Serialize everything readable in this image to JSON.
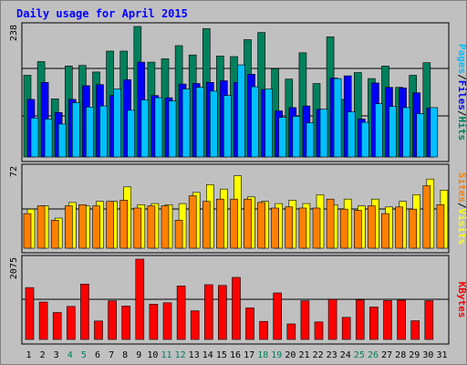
{
  "colors": {
    "background": "#c0c0c0",
    "title": "#0000ff",
    "hits": "#00805c",
    "files": "#0000ff",
    "pages": "#00c0ff",
    "visits": "#ffff00",
    "sites": "#ff8000",
    "kbytes": "#ff0000",
    "weekday_label": "#000000",
    "weekend_label": "#00805c"
  },
  "chart_data": {
    "type": "bar",
    "title": "Daily usage for April 2015",
    "x": {
      "categories": [
        "1",
        "2",
        "3",
        "4",
        "5",
        "6",
        "7",
        "8",
        "9",
        "10",
        "11",
        "12",
        "13",
        "14",
        "15",
        "16",
        "17",
        "18",
        "19",
        "20",
        "21",
        "22",
        "23",
        "24",
        "25",
        "26",
        "27",
        "28",
        "29",
        "30",
        "31"
      ],
      "weekend_days": [
        "4",
        "5",
        "11",
        "12",
        "18",
        "19",
        "25",
        "26"
      ]
    },
    "panels": [
      {
        "name": "hits-files-pages",
        "ymax_label": "238",
        "ylim": [
          0,
          238
        ],
        "axis_title": [
          "Pages",
          "/",
          "Files",
          "/",
          "Hits"
        ],
        "axis_title_colors": [
          "pages",
          "black",
          "files",
          "black",
          "hits"
        ],
        "series": [
          {
            "name": "Hits",
            "color_key": "hits",
            "values": [
              149,
              174,
              106,
              166,
              167,
              155,
              193,
              193,
              238,
              173,
              179,
              203,
              186,
              234,
              184,
              183,
              214,
              227,
              161,
              142,
              190,
              134,
              219,
              105,
              154,
              143,
              166,
              127,
              149,
              172,
              null
            ]
          },
          {
            "name": "Files",
            "color_key": "files",
            "values": [
              105,
              136,
              81,
              105,
              130,
              132,
              112,
              141,
              173,
              112,
              108,
              133,
              134,
              136,
              139,
              136,
              151,
              123,
              84,
              90,
              93,
              87,
              144,
              148,
              69,
              135,
              127,
              126,
              117,
              89,
              null
            ]
          },
          {
            "name": "Pages",
            "color_key": "pages",
            "values": [
              71,
              69,
              60,
              99,
              91,
              93,
              124,
              85,
              104,
              108,
              102,
              124,
              127,
              120,
              112,
              168,
              128,
              124,
              72,
              74,
              62,
              87,
              143,
              82,
              63,
              97,
              92,
              90,
              79,
              90,
              null
            ]
          }
        ]
      },
      {
        "name": "visits-sites",
        "ymax_label": "72",
        "ylim": [
          0,
          72
        ],
        "axis_title": [
          "Sites",
          "/",
          "Visits"
        ],
        "axis_title_colors": [
          "sites",
          "black",
          "visits"
        ],
        "series": [
          {
            "name": "Visits",
            "color_key": "visits",
            "values": [
              35,
              38,
              27,
              41,
              38,
              42,
              42,
              55,
              39,
              40,
              39,
              40,
              50,
              57,
              53,
              65,
              46,
              42,
              40,
              43,
              40,
              48,
              39,
              44,
              38,
              44,
              37,
              42,
              48,
              62,
              52
            ]
          },
          {
            "name": "Sites",
            "color_key": "sites",
            "values": [
              31,
              38,
              25,
              38,
              39,
              38,
              42,
              43,
              36,
              38,
              38,
              25,
              47,
              42,
              44,
              44,
              44,
              41,
              36,
              37,
              36,
              36,
              44,
              35,
              34,
              38,
              31,
              37,
              35,
              56,
              39
            ]
          }
        ]
      },
      {
        "name": "kbytes",
        "ymax_label": "2075",
        "ylim": [
          0,
          2075
        ],
        "axis_title": [
          "KBytes"
        ],
        "axis_title_colors": [
          "kbytes"
        ],
        "series": [
          {
            "name": "KBytes",
            "color_key": "kbytes",
            "values": [
              1339,
              967,
              695,
              853,
              1431,
              476,
              1000,
              862,
              2075,
              910,
              949,
              1385,
              741,
              1415,
              1396,
              1603,
              817,
              467,
              1203,
              400,
              1000,
              452,
              1035,
              571,
              1023,
              840,
              1005,
              1015,
              484,
              1002,
              null
            ]
          }
        ]
      }
    ]
  }
}
